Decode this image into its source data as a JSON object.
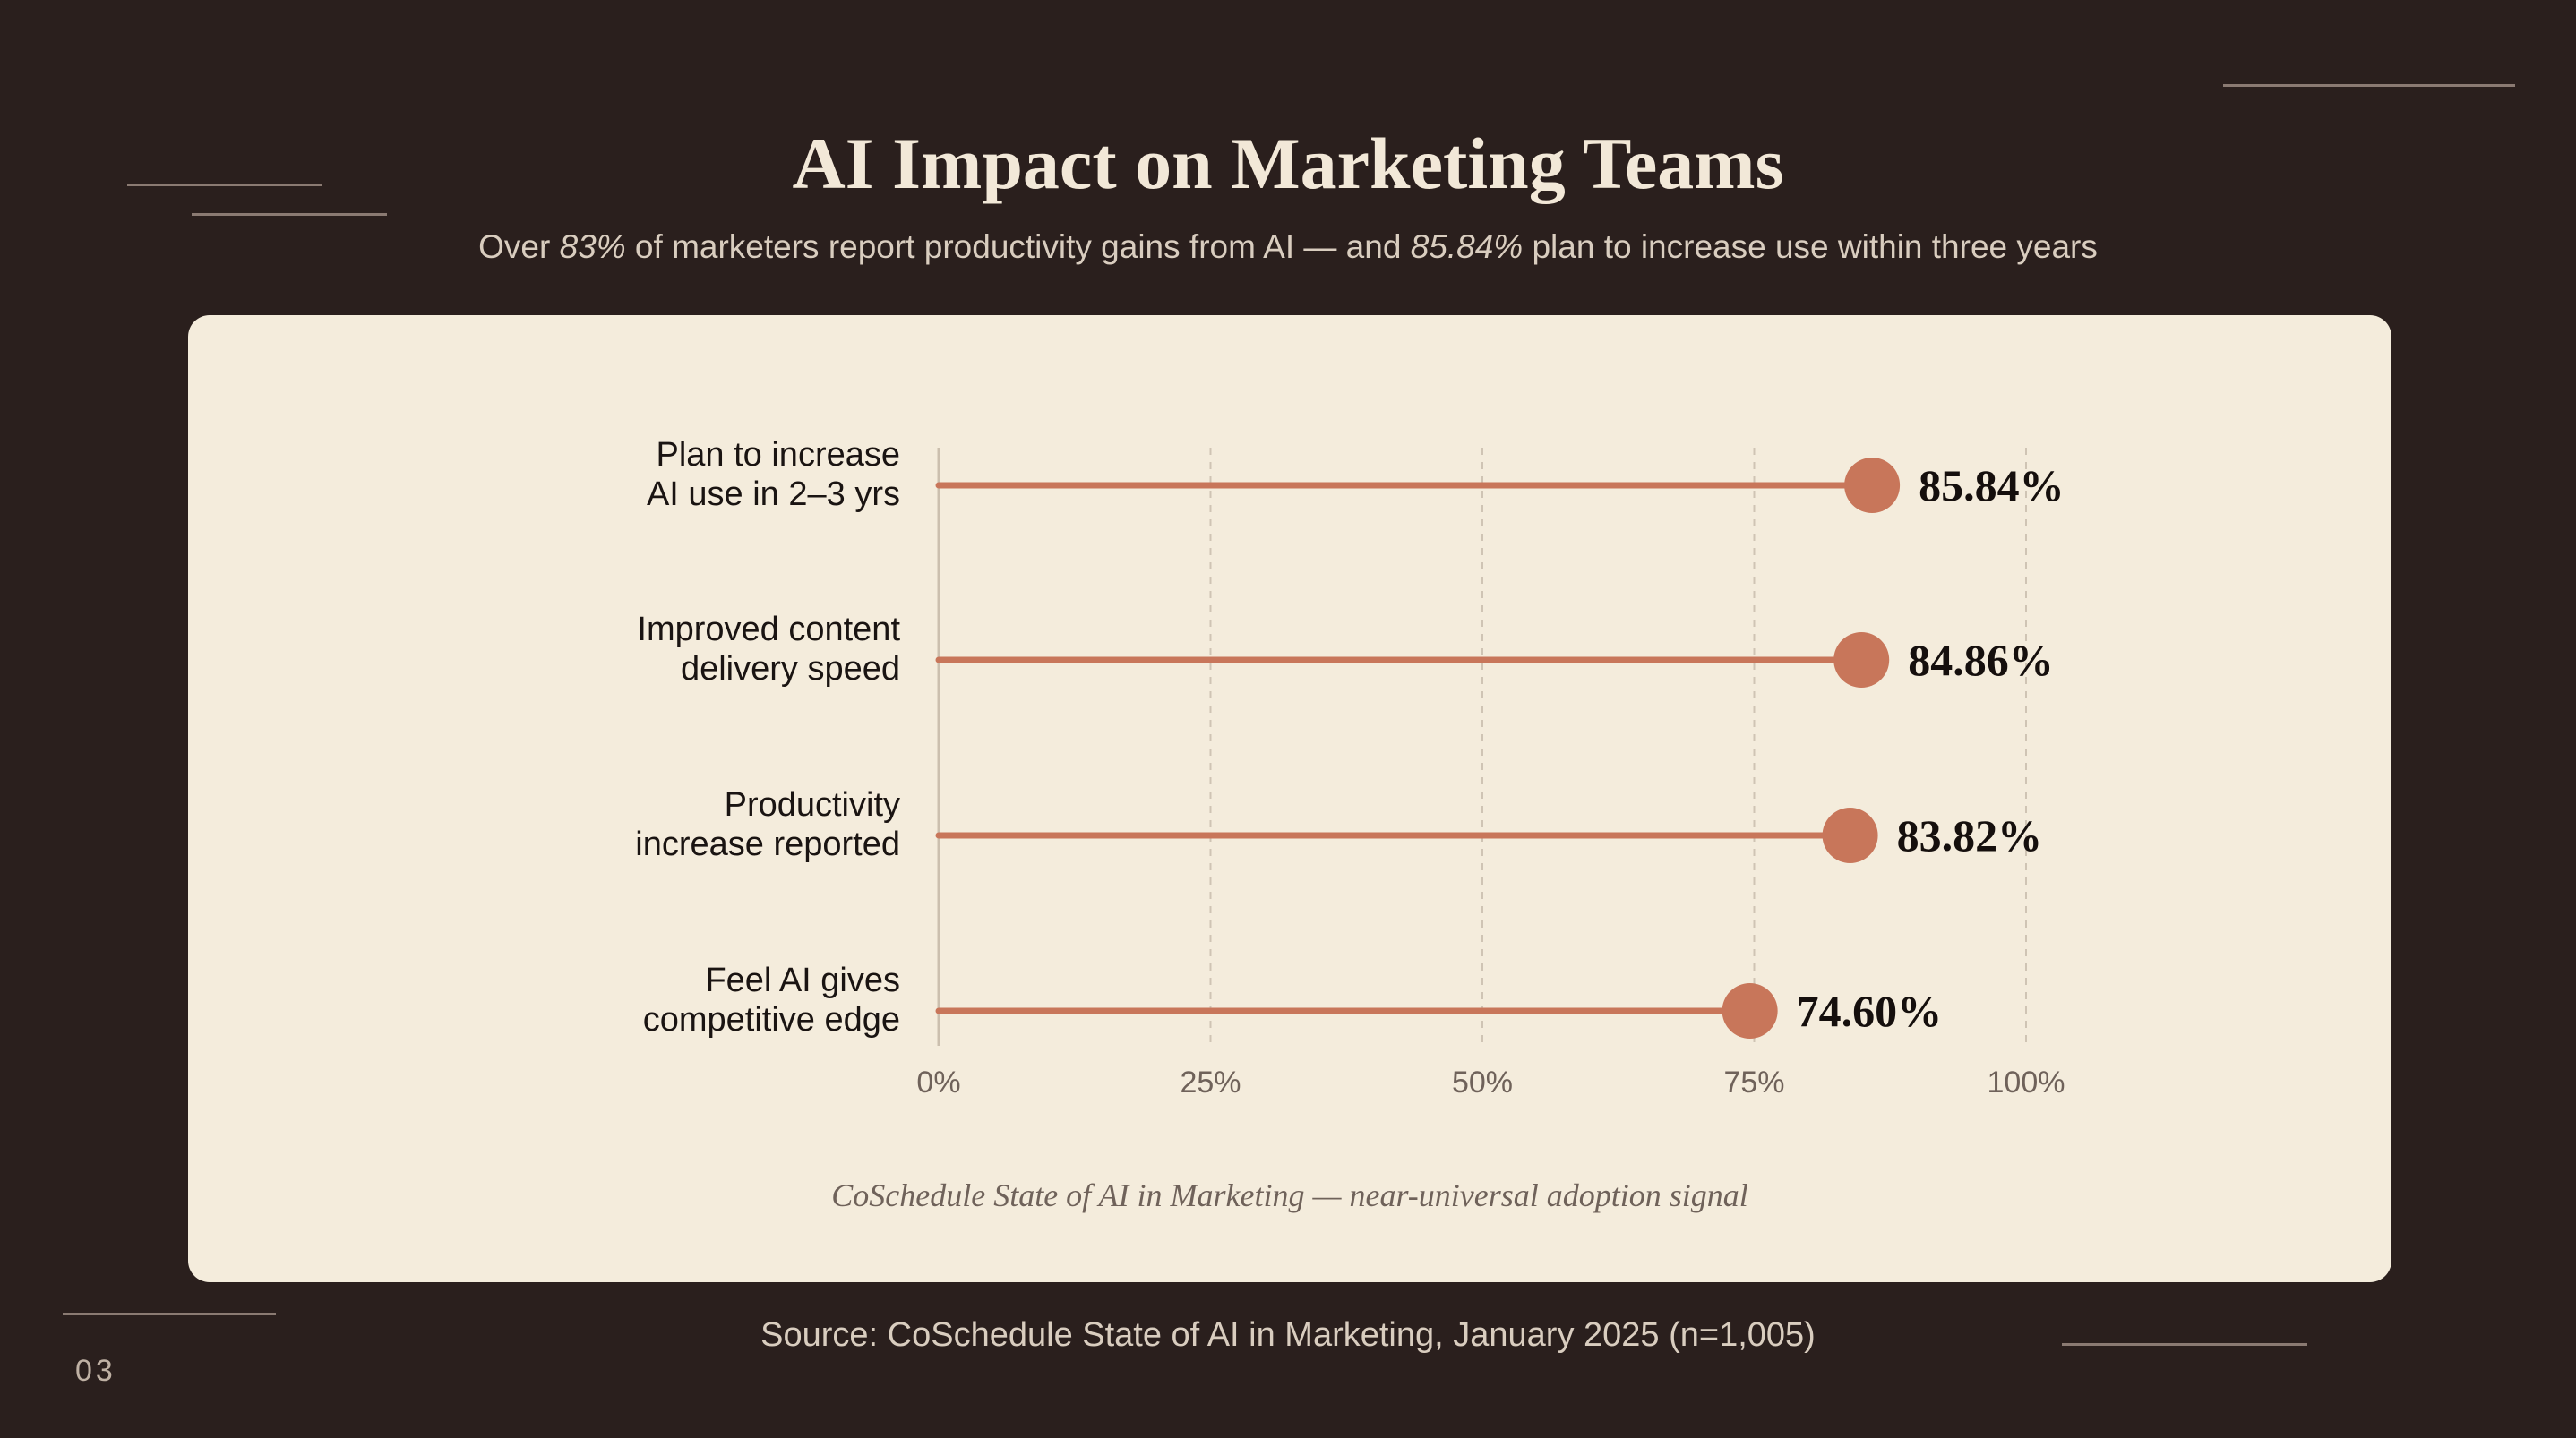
{
  "slide": {
    "title": "AI Impact on Marketing Teams",
    "subtitle": {
      "part1": "Over ",
      "em1": "83%",
      "part2": " of marketers report productivity gains from AI — and ",
      "em2": "85.84%",
      "part3": " plan to increase use within three years"
    },
    "caption": "CoSchedule State of AI in Marketing — near-universal adoption signal",
    "source": "Source: CoSchedule State of AI in Marketing, January 2025 (n=1,005)",
    "page_number": "03"
  },
  "colors": {
    "background": "#2a1f1d",
    "card": "#f4ecdc",
    "accent": "#c8765a",
    "grid": "#cfc4b4",
    "axis": "#cbbfae",
    "label": "#1a1412",
    "tick": "#6f625a",
    "value_label": "#150f0d"
  },
  "chart_data": {
    "type": "lollipop",
    "categories": [
      [
        "Plan to increase",
        "AI use in 2–3 yrs"
      ],
      [
        "Improved content",
        "delivery speed"
      ],
      [
        "Productivity",
        "increase reported"
      ],
      [
        "Feel AI gives",
        "competitive edge"
      ]
    ],
    "values": [
      85.84,
      84.86,
      83.82,
      74.6
    ],
    "value_labels": [
      "85.84%",
      "84.86%",
      "83.82%",
      "74.60%"
    ],
    "xlim": [
      0,
      100
    ],
    "xticks": [
      0,
      25,
      50,
      75,
      100
    ],
    "xtick_labels": [
      "0%",
      "25%",
      "50%",
      "75%",
      "100%"
    ],
    "grid": "vertical dashed"
  }
}
